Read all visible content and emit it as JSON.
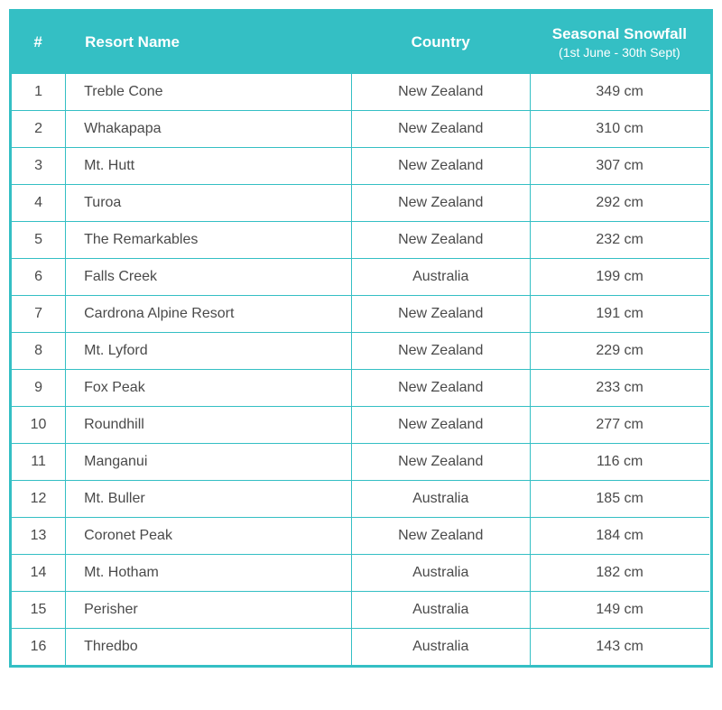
{
  "table": {
    "header_bg": "#34bfc4",
    "header_fg": "#ffffff",
    "border_color": "#34bfc4",
    "text_color": "#4a4a4a",
    "font_size_header": 17,
    "font_size_body": 16,
    "columns": {
      "rank": "#",
      "name": "Resort Name",
      "country": "Country",
      "snow_main": "Seasonal Snowfall",
      "snow_sub": "(1st June - 30th Sept)"
    },
    "rows": [
      {
        "rank": "1",
        "name": "Treble Cone",
        "country": "New Zealand",
        "snow": "349 cm"
      },
      {
        "rank": "2",
        "name": "Whakapapa",
        "country": "New Zealand",
        "snow": "310 cm"
      },
      {
        "rank": "3",
        "name": "Mt. Hutt",
        "country": "New Zealand",
        "snow": "307 cm"
      },
      {
        "rank": "4",
        "name": "Turoa",
        "country": "New Zealand",
        "snow": "292 cm"
      },
      {
        "rank": "5",
        "name": "The Remarkables",
        "country": "New Zealand",
        "snow": "232 cm"
      },
      {
        "rank": "6",
        "name": "Falls Creek",
        "country": "Australia",
        "snow": "199 cm"
      },
      {
        "rank": "7",
        "name": "Cardrona Alpine Resort",
        "country": "New Zealand",
        "snow": "191 cm"
      },
      {
        "rank": "8",
        "name": "Mt. Lyford",
        "country": "New Zealand",
        "snow": "229 cm"
      },
      {
        "rank": "9",
        "name": "Fox Peak",
        "country": "New Zealand",
        "snow": "233 cm"
      },
      {
        "rank": "10",
        "name": "Roundhill",
        "country": "New Zealand",
        "snow": "277 cm"
      },
      {
        "rank": "11",
        "name": "Manganui",
        "country": "New Zealand",
        "snow": "116 cm"
      },
      {
        "rank": "12",
        "name": "Mt. Buller",
        "country": "Australia",
        "snow": "185 cm"
      },
      {
        "rank": "13",
        "name": "Coronet Peak",
        "country": "New Zealand",
        "snow": "184 cm"
      },
      {
        "rank": "14",
        "name": "Mt. Hotham",
        "country": "Australia",
        "snow": "182 cm"
      },
      {
        "rank": "15",
        "name": "Perisher",
        "country": "Australia",
        "snow": "149 cm"
      },
      {
        "rank": "16",
        "name": "Thredbo",
        "country": "Australia",
        "snow": "143 cm"
      }
    ]
  }
}
